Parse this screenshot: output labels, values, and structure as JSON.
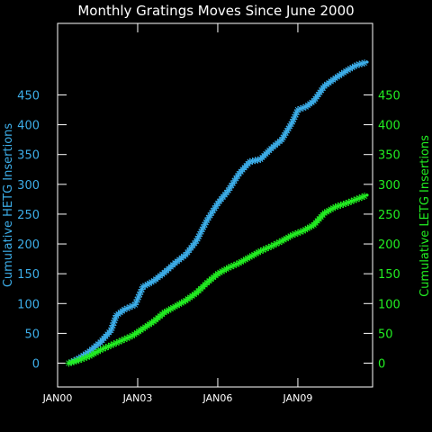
{
  "chart_data": {
    "type": "line",
    "title": "Monthly Gratings Moves Since June 2000",
    "xlabel": "",
    "x_ticks": [
      "JAN00",
      "JAN03",
      "JAN06",
      "JAN09"
    ],
    "x_tick_years": [
      2000,
      2003,
      2006,
      2009
    ],
    "xlim": [
      2000.0,
      2011.8
    ],
    "y_left": {
      "label": "Cumulative HETG Insertions",
      "ticks": [
        "0",
        "50",
        "100",
        "150",
        "200",
        "250",
        "300",
        "350",
        "400",
        "450"
      ],
      "ylim": [
        -40,
        570
      ]
    },
    "y_right": {
      "label": "Cumulative LETG Insertions",
      "ticks": [
        "0",
        "50",
        "100",
        "150",
        "200",
        "250",
        "300",
        "350",
        "400",
        "450"
      ],
      "ylim": [
        -40,
        570
      ]
    },
    "grid": false,
    "marker": "asterisk",
    "series": [
      {
        "name": "HETG",
        "axis": "left",
        "color": "#3daee9",
        "x": [
          2000.42,
          2000.8,
          2001.2,
          2001.6,
          2002.0,
          2002.2,
          2002.5,
          2002.9,
          2003.2,
          2003.6,
          2004.0,
          2004.4,
          2004.8,
          2005.2,
          2005.6,
          2006.0,
          2006.4,
          2006.8,
          2007.2,
          2007.6,
          2008.0,
          2008.4,
          2008.8,
          2009.0,
          2009.3,
          2009.6,
          2010.0,
          2010.4,
          2010.8,
          2011.2,
          2011.6
        ],
        "y": [
          0,
          8,
          20,
          35,
          55,
          80,
          90,
          98,
          128,
          138,
          152,
          168,
          182,
          205,
          240,
          268,
          290,
          318,
          338,
          342,
          360,
          375,
          405,
          425,
          430,
          440,
          465,
          478,
          490,
          500,
          505
        ]
      },
      {
        "name": "LETG",
        "axis": "right",
        "color": "#22ee22",
        "x": [
          2000.42,
          2000.8,
          2001.2,
          2001.6,
          2002.0,
          2002.4,
          2002.8,
          2003.2,
          2003.6,
          2004.0,
          2004.4,
          2004.8,
          2005.2,
          2005.6,
          2006.0,
          2006.4,
          2006.8,
          2007.2,
          2007.6,
          2008.0,
          2008.4,
          2008.8,
          2009.2,
          2009.6,
          2010.0,
          2010.4,
          2010.8,
          2011.2,
          2011.6
        ],
        "y": [
          0,
          5,
          12,
          22,
          30,
          38,
          46,
          58,
          70,
          85,
          95,
          105,
          118,
          135,
          150,
          160,
          168,
          178,
          188,
          196,
          205,
          215,
          222,
          232,
          252,
          262,
          268,
          275,
          282
        ]
      }
    ]
  }
}
